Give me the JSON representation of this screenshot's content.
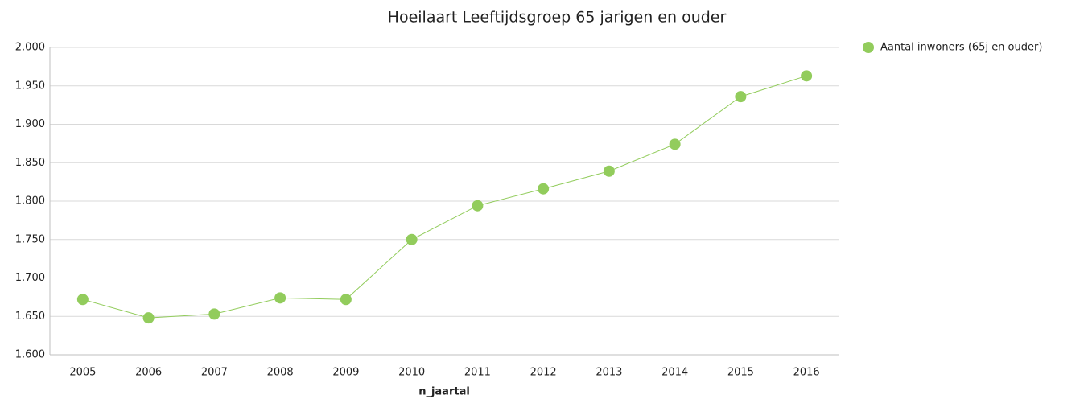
{
  "chart_data": {
    "type": "line",
    "title": "Hoeilaart  Leeftijdsgroep 65 jarigen en ouder",
    "x_label": "n_jaartal",
    "categories": [
      "2005",
      "2006",
      "2007",
      "2008",
      "2009",
      "2010",
      "2011",
      "2012",
      "2013",
      "2014",
      "2015",
      "2016"
    ],
    "series": [
      {
        "name": "Aantal inwoners (65j en ouder)",
        "color": "#92cc5c",
        "values": [
          1672,
          1648,
          1653,
          1674,
          1672,
          1750,
          1794,
          1816,
          1839,
          1874,
          1936,
          1963
        ]
      }
    ],
    "ylim": [
      1600,
      2000
    ],
    "yticks": [
      {
        "value": 1600,
        "label": "1.600"
      },
      {
        "value": 1650,
        "label": "1.650"
      },
      {
        "value": 1700,
        "label": "1.700"
      },
      {
        "value": 1750,
        "label": "1.750"
      },
      {
        "value": 1800,
        "label": "1.800"
      },
      {
        "value": 1850,
        "label": "1.850"
      },
      {
        "value": 1900,
        "label": "1.900"
      },
      {
        "value": 1950,
        "label": "1.950"
      },
      {
        "value": 2000,
        "label": "2.000"
      }
    ],
    "grid": true,
    "legend": "right"
  }
}
